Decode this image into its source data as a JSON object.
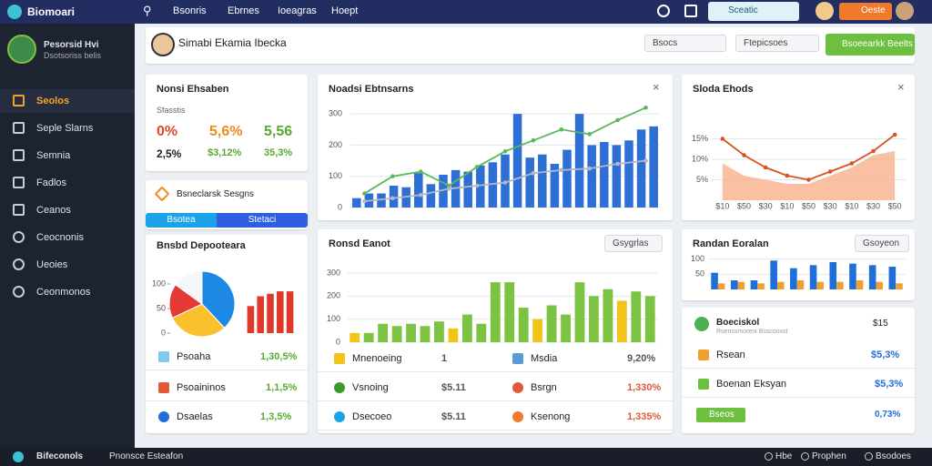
{
  "topbar": {
    "brand": "Biomoari",
    "nav": [
      "Bsonris",
      "Ebrnes",
      "Ioeagras",
      "Hoept"
    ],
    "search": "Sceatic",
    "user": "Oeste"
  },
  "sidebar": {
    "user_name": "Pesorsid Hvi",
    "user_role": "Dsotsoriss belis",
    "items": [
      "Seolos",
      "Seple Slarns",
      "Semnia",
      "Fadlos",
      "Ceanos",
      "Ceocnonis",
      "Ueoies",
      "Ceonmonos"
    ]
  },
  "header": {
    "title": "Simabi Ekamia Ibecka",
    "filters": [
      "Bsocs",
      "Ftepicsoes"
    ],
    "button": "Bsoeearkk Beelts"
  },
  "stats_card": {
    "title": "Nonsi Ehsaben",
    "subtitle": "Sfasstis",
    "row1": [
      "0%",
      "5,6%",
      "5,56"
    ],
    "row2": [
      "2,5%",
      "$3,12%",
      "35,3%"
    ]
  },
  "tabs_card": {
    "title": "Bsneclarsk Sesgns",
    "tabs": [
      "Bsotea",
      "Stetaci"
    ]
  },
  "donut_card": {
    "title": "Bnsbd Depooteara",
    "pie": {
      "type": "pie",
      "values": [
        38,
        30,
        17,
        15
      ],
      "colors": [
        "#1e88e5",
        "#fbc02d",
        "#e53935",
        "#f4f6f9"
      ]
    },
    "bars": {
      "type": "bar",
      "values": [
        55,
        75,
        80,
        85,
        85
      ],
      "color": "#e0392a",
      "ylim": [
        0,
        100
      ],
      "yticks": [
        0,
        50,
        100
      ]
    },
    "rows": [
      {
        "label": "Psoaha",
        "value": "1,30,5%"
      },
      {
        "label": "Psoaininos",
        "value": "1,1,5%"
      },
      {
        "label": "Dsaelas",
        "value": "1,3,5%"
      }
    ]
  },
  "main_chart": {
    "type": "bar",
    "title": "Noadsi Ebtnsarns",
    "ylim": [
      0,
      350
    ],
    "yticks": [
      0,
      100,
      200,
      300
    ],
    "grid": true,
    "series": [
      {
        "type": "bar",
        "color": "#2d6fd4",
        "values": [
          30,
          45,
          45,
          70,
          65,
          110,
          75,
          105,
          120,
          115,
          135,
          145,
          170,
          300,
          160,
          170,
          140,
          185,
          300,
          200,
          210,
          200,
          215,
          250,
          260
        ]
      },
      {
        "type": "line",
        "color": "#5cb85c",
        "values": [
          45,
          100,
          115,
          70,
          130,
          180,
          215,
          250,
          235,
          280,
          320
        ]
      },
      {
        "type": "line",
        "color": "#b5b8c0",
        "values": [
          20,
          30,
          40,
          60,
          70,
          80,
          110,
          120,
          125,
          140,
          150
        ]
      }
    ]
  },
  "activity_card": {
    "title": "Ronsd Eanot",
    "dropdown": "Gsygrlas",
    "chart": {
      "type": "bar",
      "ylim": [
        0,
        300
      ],
      "yticks": [
        0,
        100,
        200,
        300
      ],
      "grid": true,
      "values": [
        40,
        40,
        80,
        70,
        80,
        70,
        90,
        60,
        120,
        80,
        260,
        260,
        150,
        100,
        160,
        120,
        260,
        200,
        230,
        180,
        220,
        200
      ],
      "colors": [
        "#f0c419",
        "#7cc243",
        "#7cc243",
        "#7cc243",
        "#7cc243",
        "#7cc243",
        "#7cc243",
        "#f0c419",
        "#7cc243",
        "#7cc243",
        "#7cc243",
        "#7cc243",
        "#7cc243",
        "#f0c419",
        "#7cc243",
        "#7cc243",
        "#7cc243",
        "#7cc243",
        "#7cc243",
        "#f0c419",
        "#7cc243",
        "#7cc243"
      ]
    },
    "rows": [
      {
        "label": "Mnenoeing",
        "value": "1"
      },
      {
        "label": "Msdia",
        "value": "9,20%"
      },
      {
        "label": "Vsnoing",
        "value": "$5.11"
      },
      {
        "label": "Bsrgn",
        "value": "1,330%"
      },
      {
        "label": "Dsecoeo",
        "value": "$5.11"
      },
      {
        "label": "Ksenong",
        "value": "1,335%"
      }
    ]
  },
  "trend_card": {
    "title": "Sloda Ehods",
    "chart": {
      "type": "line",
      "categories": [
        "$10",
        "$50",
        "$30",
        "$10",
        "$50",
        "$30",
        "$10",
        "$30",
        "$50"
      ],
      "ylim": [
        0,
        20
      ],
      "yticks": [
        {
          "value": 5,
          "label": "5%"
        },
        {
          "value": 10,
          "label": "10%"
        },
        {
          "value": 15,
          "label": "15%"
        }
      ],
      "grid": true,
      "series": [
        {
          "type": "area",
          "color": "#f7b08c",
          "values": [
            9,
            6,
            5,
            4,
            4,
            6,
            8,
            11,
            12
          ]
        },
        {
          "type": "line",
          "color": "#d9531e",
          "values": [
            15,
            11,
            8,
            6,
            5,
            7,
            9,
            12,
            16
          ]
        }
      ]
    }
  },
  "region_card": {
    "title": "Randan Eoralan",
    "dropdown": "Gsoyeon",
    "chart": {
      "type": "bar",
      "ylim": [
        0,
        120
      ],
      "yticks": [
        50,
        100
      ],
      "grid": true,
      "series": [
        {
          "color": "#1e6fd9",
          "values": [
            55,
            30,
            30,
            95,
            70,
            80,
            90,
            85,
            80,
            75
          ]
        },
        {
          "color": "#f0a030",
          "values": [
            20,
            25,
            20,
            25,
            30,
            25,
            25,
            30,
            25,
            20
          ]
        }
      ]
    }
  },
  "balance_card": {
    "title": "Boeciskol",
    "subtitle": "Rsenssmoreni Bsscoosst",
    "amount": "$15",
    "rows": [
      {
        "label": "Rsean",
        "value": "$5,3%"
      },
      {
        "label": "Boenan Eksyan",
        "value": "$5,3%"
      }
    ],
    "chip": "Bseos",
    "chip_value": "0,73%"
  },
  "footer": {
    "left": "Bifeconols",
    "center": "Pnonsce Esteafon",
    "right": [
      "Hbe",
      "Prophen",
      "Bsodoes"
    ]
  }
}
